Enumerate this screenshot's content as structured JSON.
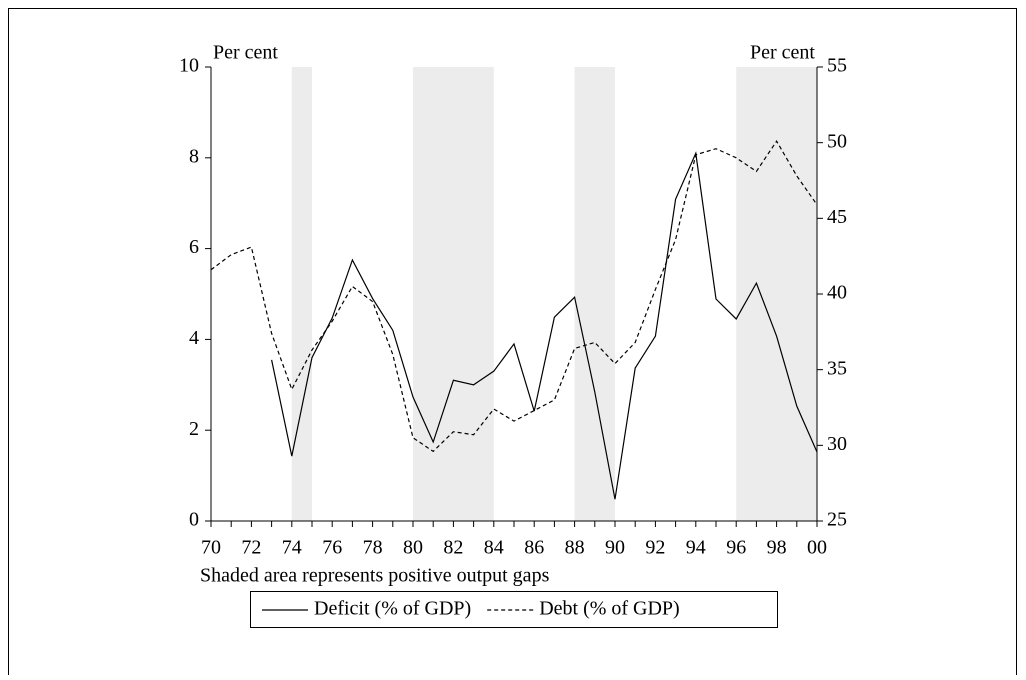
{
  "chart_data": {
    "type": "line",
    "categories": [
      "70",
      null,
      "72",
      null,
      "74",
      null,
      "76",
      null,
      "78",
      null,
      "80",
      null,
      "82",
      null,
      "84",
      null,
      "86",
      null,
      "88",
      null,
      "90",
      null,
      "92",
      null,
      "94",
      null,
      "96",
      null,
      "98",
      null,
      "00"
    ],
    "series": [
      {
        "name": "Deficit (% of GDP)",
        "color": "#000000",
        "line_style": "solid",
        "values": [
          null,
          null,
          null,
          3.55,
          1.43,
          3.6,
          4.47,
          5.75,
          4.9,
          4.2,
          2.73,
          1.74,
          3.1,
          3.0,
          3.3,
          3.9,
          2.42,
          4.49,
          4.93,
          2.84,
          0.48,
          3.37,
          4.07,
          7.09,
          8.1,
          4.89,
          4.45,
          5.24,
          4.07,
          2.53,
          1.52
        ]
      },
      {
        "name": "Debt (% of GDP)",
        "color": "#000000",
        "line_style": "dashed",
        "axis": "y2",
        "values": [
          41.6,
          42.6,
          43.1,
          37.4,
          33.7,
          36.3,
          38.2,
          40.5,
          39.5,
          36.0,
          30.5,
          29.6,
          30.9,
          30.7,
          32.4,
          31.6,
          32.3,
          33.0,
          36.4,
          36.8,
          35.4,
          36.8,
          40.3,
          43.6,
          49.2,
          49.6,
          49.0,
          48.1,
          50.1,
          47.8,
          45.9
        ]
      }
    ],
    "ylabel": "Per cent",
    "y2label": "Per cent",
    "ylim": [
      0,
      10
    ],
    "yticks": [
      0,
      2,
      4,
      6,
      8,
      10
    ],
    "y2lim": [
      25,
      55
    ],
    "y2ticks": [
      25,
      30,
      35,
      40,
      45,
      50,
      55
    ],
    "shaded_spans": [
      [
        4,
        5
      ],
      [
        10,
        14
      ],
      [
        18,
        20
      ],
      [
        26,
        30
      ]
    ],
    "shade_color": "#ececec",
    "note": "Shaded area represents positive output gaps",
    "legend": "bottom"
  }
}
